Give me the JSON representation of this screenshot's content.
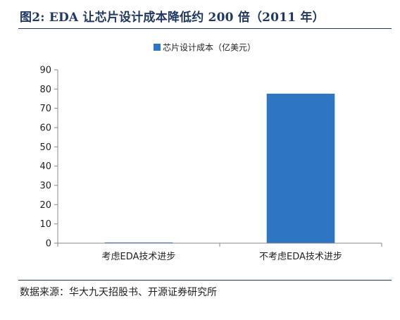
{
  "figure": {
    "title": "图2:  EDA 让芯片设计成本降低约 200 倍（2011 年）",
    "source": "数据来源：华大九天招股书、开源证券研究所"
  },
  "colors": {
    "bar": "#2e75c4",
    "axis": "#888888",
    "title": "#1f3864"
  },
  "chart_data": {
    "type": "bar",
    "title": "",
    "xlabel": "",
    "ylabel": "",
    "categories": [
      "考虑EDA技术进步",
      "不考虑EDA技术进步"
    ],
    "series": [
      {
        "name": "芯片设计成本（亿美元）",
        "values": [
          0.4,
          77.6
        ]
      }
    ],
    "ylim": [
      0,
      90
    ],
    "yticks": [
      0,
      10,
      20,
      30,
      40,
      50,
      60,
      70,
      80,
      90
    ],
    "grid": false,
    "legend": "top-center"
  }
}
